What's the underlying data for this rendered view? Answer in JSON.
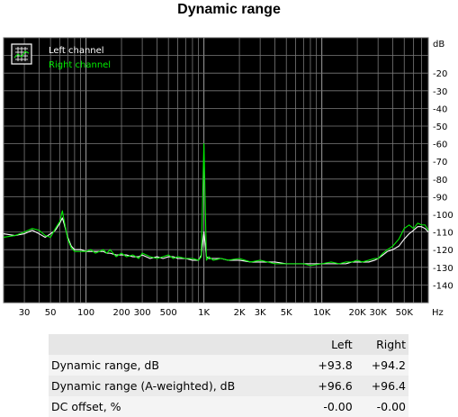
{
  "chart_data": {
    "type": "line",
    "title": "Dynamic range",
    "x_scale": "log",
    "xlim": [
      20,
      80000
    ],
    "ylim": [
      -150,
      0
    ],
    "y_unit": "dB",
    "x_unit": "Hz",
    "grid": true,
    "legend_position": "top-left",
    "x_ticks": [
      {
        "v": 30,
        "label": "30"
      },
      {
        "v": 50,
        "label": "50"
      },
      {
        "v": 100,
        "label": "100"
      },
      {
        "v": 200,
        "label": "200"
      },
      {
        "v": 300,
        "label": "300"
      },
      {
        "v": 500,
        "label": "500"
      },
      {
        "v": 1000,
        "label": "1K"
      },
      {
        "v": 2000,
        "label": "2K"
      },
      {
        "v": 3000,
        "label": "3K"
      },
      {
        "v": 5000,
        "label": "5K"
      },
      {
        "v": 10000,
        "label": "10K"
      },
      {
        "v": 20000,
        "label": "20K"
      },
      {
        "v": 30000,
        "label": "30K"
      },
      {
        "v": 50000,
        "label": "50K"
      }
    ],
    "y_ticks": [
      {
        "v": -20,
        "label": "-20"
      },
      {
        "v": -30,
        "label": "-30"
      },
      {
        "v": -40,
        "label": "-40"
      },
      {
        "v": -50,
        "label": "-50"
      },
      {
        "v": -60,
        "label": "-60"
      },
      {
        "v": -70,
        "label": "-70"
      },
      {
        "v": -80,
        "label": "-80"
      },
      {
        "v": -90,
        "label": "-90"
      },
      {
        "v": -100,
        "label": "-100"
      },
      {
        "v": -110,
        "label": "-110"
      },
      {
        "v": -120,
        "label": "-120"
      },
      {
        "v": -130,
        "label": "-130"
      },
      {
        "v": -140,
        "label": "-140"
      }
    ],
    "series": [
      {
        "name": "Left channel",
        "color": "#ffffff",
        "x": [
          20,
          25,
          30,
          35,
          40,
          45,
          50,
          55,
          60,
          63,
          65,
          70,
          75,
          80,
          90,
          100,
          110,
          120,
          130,
          140,
          150,
          160,
          180,
          200,
          220,
          250,
          280,
          300,
          350,
          400,
          450,
          500,
          550,
          600,
          700,
          800,
          900,
          950,
          1000,
          1050,
          1100,
          1200,
          1400,
          1600,
          2000,
          2500,
          3000,
          4000,
          5000,
          6000,
          7000,
          8000,
          10000,
          12000,
          14000,
          16000,
          18000,
          20000,
          22000,
          25000,
          28000,
          30000,
          33000,
          36000,
          40000,
          45000,
          50000,
          55000,
          60000,
          65000,
          70000,
          75000,
          80000
        ],
        "y": [
          -111,
          -112,
          -111,
          -109,
          -111,
          -113,
          -111,
          -109,
          -105,
          -102,
          -105,
          -113,
          -118,
          -120,
          -120,
          -121,
          -121,
          -121,
          -121,
          -121,
          -122,
          -122,
          -123,
          -123,
          -123,
          -124,
          -124,
          -123,
          -125,
          -124,
          -125,
          -124,
          -124,
          -125,
          -125,
          -126,
          -126,
          -123,
          -110,
          -124,
          -125,
          -125,
          -125,
          -126,
          -126,
          -127,
          -127,
          -127,
          -128,
          -128,
          -128,
          -128,
          -128,
          -128,
          -128,
          -128,
          -127,
          -127,
          -127,
          -127,
          -126,
          -125,
          -123,
          -121,
          -120,
          -118,
          -114,
          -111,
          -109,
          -107,
          -107,
          -108,
          -110
        ]
      },
      {
        "name": "Right channel",
        "color": "#00ee00",
        "x": [
          20,
          25,
          30,
          35,
          40,
          45,
          50,
          55,
          60,
          63,
          65,
          70,
          75,
          80,
          90,
          100,
          110,
          120,
          130,
          140,
          150,
          160,
          180,
          200,
          220,
          250,
          280,
          300,
          350,
          400,
          450,
          500,
          550,
          600,
          700,
          800,
          900,
          950,
          1000,
          1050,
          1100,
          1200,
          1400,
          1600,
          2000,
          2500,
          3000,
          4000,
          5000,
          6000,
          7000,
          8000,
          10000,
          12000,
          14000,
          16000,
          18000,
          20000,
          22000,
          25000,
          28000,
          30000,
          33000,
          36000,
          40000,
          45000,
          50000,
          55000,
          60000,
          65000,
          70000,
          75000,
          80000
        ],
        "y": [
          -113,
          -112,
          -110,
          -108,
          -109,
          -112,
          -113,
          -108,
          -104,
          -98,
          -103,
          -114,
          -119,
          -121,
          -121,
          -121,
          -120,
          -122,
          -121,
          -120,
          -122,
          -120,
          -124,
          -122,
          -124,
          -123,
          -125,
          -122,
          -124,
          -125,
          -124,
          -123,
          -125,
          -124,
          -125,
          -125,
          -126,
          -124,
          -60,
          -126,
          -124,
          -126,
          -125,
          -126,
          -125,
          -127,
          -126,
          -128,
          -128,
          -128,
          -128,
          -129,
          -128,
          -127,
          -128,
          -127,
          -127,
          -126,
          -127,
          -126,
          -125,
          -125,
          -122,
          -120,
          -118,
          -114,
          -108,
          -106,
          -108,
          -105,
          -106,
          -106,
          -109
        ]
      }
    ],
    "table": {
      "columns": [
        "",
        "Left",
        "Right"
      ],
      "rows": [
        [
          "Dynamic range, dB",
          "+93.8",
          "+94.2"
        ],
        [
          "Dynamic range (A-weighted), dB",
          "+96.6",
          "+96.4"
        ],
        [
          "DC offset, %",
          "-0.00",
          "-0.00"
        ]
      ]
    }
  }
}
